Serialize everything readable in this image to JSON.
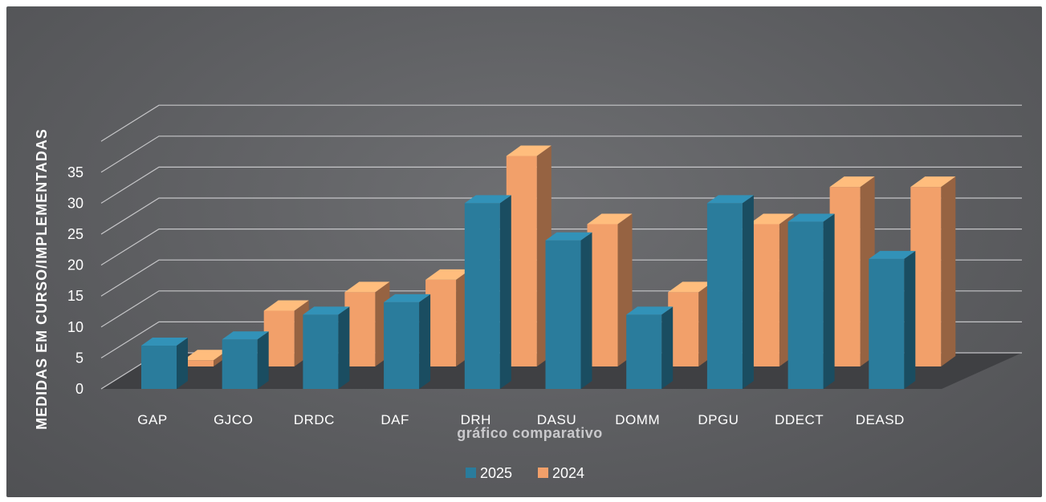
{
  "chart_data": {
    "type": "bar",
    "title": "",
    "xlabel": "gráfico comparativo",
    "ylabel": "MEDIDAS  EM CURSO/IMPLEMENTADAS",
    "ylim": [
      0,
      35
    ],
    "yticks": [
      "0",
      "5",
      "10",
      "15",
      "20",
      "25",
      "30",
      "35"
    ],
    "grid": true,
    "legend_position": "bottom",
    "style": "3d-clustered",
    "categories": [
      "GAP",
      "GJCO",
      "DRDC",
      "DAF",
      "DRH",
      "DASU",
      "DOMM",
      "DPGU",
      "DDECT",
      "DEASD"
    ],
    "series": [
      {
        "name": "2025",
        "color": "#2a7c9c",
        "values": [
          7,
          8,
          12,
          14,
          30,
          24,
          12,
          30,
          27,
          21
        ]
      },
      {
        "name": "2024",
        "color": "#f2a06a",
        "values": [
          1,
          9,
          12,
          14,
          34,
          23,
          12,
          23,
          29,
          29
        ]
      }
    ]
  }
}
